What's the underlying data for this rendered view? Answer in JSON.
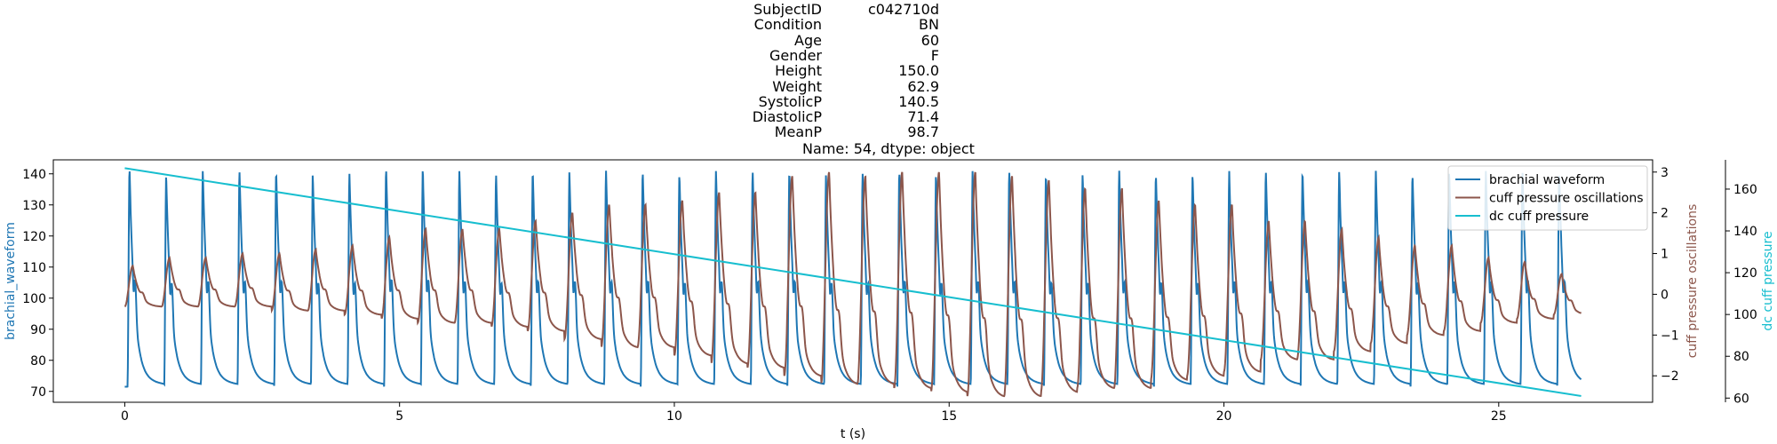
{
  "chart_data": {
    "type": "line",
    "title_lines": [
      {
        "key": "SubjectID",
        "value": "c042710d"
      },
      {
        "key": "Condition",
        "value": "BN"
      },
      {
        "key": "Age",
        "value": "60"
      },
      {
        "key": "Gender",
        "value": "F"
      },
      {
        "key": "Height",
        "value": "150.0"
      },
      {
        "key": "Weight",
        "value": "62.9"
      },
      {
        "key": "SystolicP",
        "value": "140.5"
      },
      {
        "key": "DiastolicP",
        "value": "71.4"
      },
      {
        "key": "MeanP",
        "value": "98.7"
      }
    ],
    "title_footer": "Name: 54, dtype: object",
    "xlabel": "t (s)",
    "xlim": [
      -1.3,
      27.8
    ],
    "xticks": [
      0,
      5,
      10,
      15,
      20,
      25
    ],
    "axes": {
      "left": {
        "label": "brachial_waveform",
        "color": "#1f77b4",
        "ylim": [
          66.5,
          144.5
        ],
        "ticks": [
          70,
          80,
          90,
          100,
          110,
          120,
          130,
          140
        ]
      },
      "right": {
        "label": "cuff pressure oscillations",
        "color": "#8c564b",
        "ylim": [
          -2.65,
          3.3
        ],
        "ticks": [
          -2,
          -1,
          0,
          1,
          2,
          3
        ],
        "tick_labels": [
          "−2",
          "−1",
          "0",
          "1",
          "2",
          "3"
        ]
      },
      "far_right": {
        "label": "dc cuff pressure",
        "color": "#17becf",
        "ylim": [
          58,
          174
        ],
        "ticks": [
          60,
          80,
          100,
          120,
          140,
          160
        ]
      }
    },
    "legend": {
      "placement": "top-right"
    },
    "series": [
      {
        "name": "brachial waveform",
        "color": "#1f77b4",
        "axis": "left",
        "t_start": 0.0,
        "t_end": 26.5,
        "beat_period": 0.667,
        "peak": 141.5,
        "trough": 71.5,
        "peak_values": [
          142,
          140,
          141,
          141,
          141,
          140,
          140,
          142,
          142,
          141,
          140,
          141,
          141,
          141,
          141,
          140,
          141,
          141,
          141,
          140,
          140,
          141,
          140,
          141,
          141,
          140,
          140,
          141,
          140,
          140,
          141,
          141,
          141,
          141,
          141,
          140,
          141,
          141,
          141,
          141
        ]
      },
      {
        "name": "cuff pressure oscillations",
        "color": "#8c564b",
        "axis": "right",
        "peak_times": [
          0.15,
          0.82,
          1.48,
          2.15,
          2.82,
          3.48,
          4.15,
          4.82,
          5.48,
          6.15,
          6.82,
          7.48,
          8.15,
          8.82,
          9.48,
          10.15,
          10.82,
          11.48,
          12.15,
          12.82,
          13.48,
          14.15,
          14.82,
          15.48,
          16.15,
          16.82,
          17.48,
          18.15,
          18.82,
          19.48,
          20.15,
          20.82,
          21.48,
          22.15,
          22.82,
          23.48,
          24.15,
          24.82,
          25.48,
          26.15
        ],
        "peak_values": [
          0.7,
          0.9,
          0.9,
          1.0,
          1.0,
          1.1,
          1.2,
          1.4,
          1.6,
          1.6,
          1.6,
          1.8,
          2.0,
          2.2,
          2.2,
          2.3,
          2.5,
          2.5,
          2.9,
          3.0,
          2.9,
          3.0,
          3.0,
          3.0,
          2.9,
          2.8,
          2.6,
          2.6,
          2.3,
          2.2,
          2.2,
          1.8,
          1.8,
          1.6,
          1.4,
          1.2,
          1.2,
          0.9,
          0.8,
          0.5
        ],
        "trough_values": [
          -0.3,
          -0.3,
          -0.3,
          -0.3,
          -0.4,
          -0.4,
          -0.5,
          -0.6,
          -0.7,
          -0.7,
          -0.8,
          -0.9,
          -1.1,
          -1.3,
          -1.3,
          -1.5,
          -1.7,
          -1.8,
          -2.0,
          -2.2,
          -2.2,
          -2.3,
          -2.4,
          -2.5,
          -2.5,
          -2.4,
          -2.3,
          -2.3,
          -2.1,
          -2.0,
          -1.9,
          -1.6,
          -1.6,
          -1.4,
          -1.2,
          -1.0,
          -0.9,
          -0.7,
          -0.6,
          -0.5
        ]
      },
      {
        "name": "dc cuff pressure",
        "color": "#17becf",
        "axis": "far_right",
        "x": [
          0.0,
          26.5
        ],
        "y": [
          170.0,
          61.0
        ]
      }
    ]
  }
}
